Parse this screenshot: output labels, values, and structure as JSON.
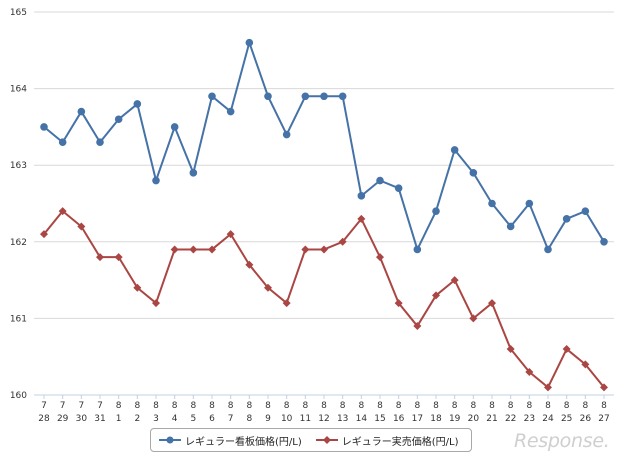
{
  "chart_data": {
    "type": "line",
    "categories": [
      [
        "7",
        "28"
      ],
      [
        "7",
        "29"
      ],
      [
        "7",
        "30"
      ],
      [
        "7",
        "31"
      ],
      [
        "8",
        "1"
      ],
      [
        "8",
        "2"
      ],
      [
        "8",
        "3"
      ],
      [
        "8",
        "4"
      ],
      [
        "8",
        "5"
      ],
      [
        "8",
        "6"
      ],
      [
        "8",
        "7"
      ],
      [
        "8",
        "8"
      ],
      [
        "8",
        "9"
      ],
      [
        "8",
        "10"
      ],
      [
        "8",
        "11"
      ],
      [
        "8",
        "12"
      ],
      [
        "8",
        "13"
      ],
      [
        "8",
        "14"
      ],
      [
        "8",
        "15"
      ],
      [
        "8",
        "16"
      ],
      [
        "8",
        "17"
      ],
      [
        "8",
        "18"
      ],
      [
        "8",
        "19"
      ],
      [
        "8",
        "20"
      ],
      [
        "8",
        "21"
      ],
      [
        "8",
        "22"
      ],
      [
        "8",
        "23"
      ],
      [
        "8",
        "24"
      ],
      [
        "8",
        "25"
      ],
      [
        "8",
        "26"
      ],
      [
        "8",
        "27"
      ]
    ],
    "series": [
      {
        "name": "レギュラー看板価格(円/L)",
        "color": "#4572a7",
        "marker": "circle",
        "values": [
          163.5,
          163.3,
          163.7,
          163.3,
          163.6,
          163.8,
          162.8,
          163.5,
          162.9,
          163.9,
          163.7,
          164.6,
          163.9,
          163.4,
          163.9,
          163.9,
          163.9,
          162.6,
          162.8,
          162.7,
          161.9,
          162.4,
          163.2,
          162.9,
          162.5,
          162.2,
          162.5,
          161.9,
          162.3,
          162.4,
          162.0
        ]
      },
      {
        "name": "レギュラー実売価格(円/L)",
        "color": "#aa4643",
        "marker": "diamond",
        "values": [
          162.1,
          162.4,
          162.2,
          161.8,
          161.8,
          161.4,
          161.2,
          161.9,
          161.9,
          161.9,
          162.1,
          161.7,
          161.4,
          161.2,
          161.9,
          161.9,
          162.0,
          162.3,
          161.8,
          161.2,
          160.9,
          161.3,
          161.5,
          161.0,
          161.2,
          160.6,
          160.3,
          160.1,
          160.6,
          160.4,
          160.1
        ]
      }
    ],
    "yticks": [
      "160",
      "161",
      "162",
      "163",
      "164",
      "165"
    ],
    "ylim": [
      160,
      165
    ],
    "grid": true,
    "legend": "bottom-center"
  },
  "watermark": "Response."
}
